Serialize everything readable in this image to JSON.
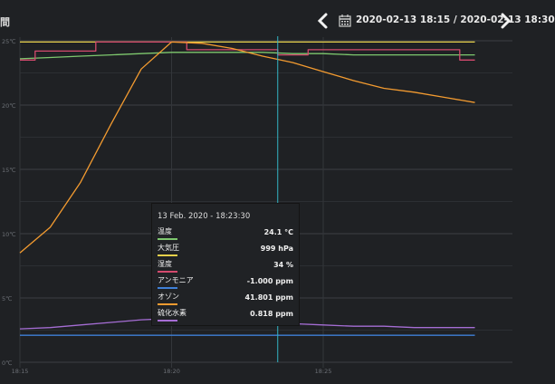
{
  "header": {
    "left_label": "間",
    "date_range": "2020-02-13 18:15 / 2020-02-13 18:30"
  },
  "colors": {
    "background": "#1f2124",
    "grid": "#3b3e42",
    "cursor": "#33b6c5"
  },
  "chart_data": {
    "type": "line",
    "x_ticks": [
      "18:15",
      "18:20",
      "18:25"
    ],
    "y_ticks": [
      "0℃",
      "5℃",
      "10℃",
      "15℃",
      "20℃",
      "25℃"
    ],
    "ylim": [
      0,
      25
    ],
    "grid": true,
    "cursor_time": "18:23:30",
    "series": [
      {
        "name": "温度",
        "color": "#7ec86e",
        "x": [
          "18:15",
          "18:16",
          "18:17",
          "18:18",
          "18:19",
          "18:20",
          "18:21",
          "18:22",
          "18:23",
          "18:24",
          "18:25",
          "18:26",
          "18:27",
          "18:28",
          "18:29",
          "18:30"
        ],
        "y": [
          23.6,
          23.7,
          23.8,
          23.9,
          24.0,
          24.1,
          24.1,
          24.1,
          24.1,
          24.0,
          24.0,
          23.9,
          23.9,
          23.9,
          23.9,
          23.9
        ]
      },
      {
        "name": "大気圧",
        "color": "#e6d04a",
        "x": [
          "18:15",
          "18:20",
          "18:25",
          "18:30"
        ],
        "y": [
          24.9,
          24.9,
          24.9,
          24.9
        ]
      },
      {
        "name": "湿度",
        "color": "#d44a6e",
        "x": [
          "18:15",
          "18:16",
          "18:17",
          "18:18",
          "18:19",
          "18:20",
          "18:21",
          "18:22",
          "18:23",
          "18:24",
          "18:25",
          "18:26",
          "18:27",
          "18:28",
          "18:29",
          "18:30"
        ],
        "y": [
          23.5,
          24.2,
          24.2,
          24.9,
          24.9,
          24.9,
          24.3,
          24.3,
          24.3,
          23.9,
          24.3,
          24.3,
          24.3,
          24.3,
          24.3,
          23.5
        ]
      },
      {
        "name": "アンモニア",
        "color": "#3f7fd6",
        "x": [
          "18:15",
          "18:20",
          "18:25",
          "18:30"
        ],
        "y": [
          2.1,
          2.1,
          2.1,
          2.1
        ]
      },
      {
        "name": "オゾン",
        "color": "#f39b30",
        "x": [
          "18:15",
          "18:16",
          "18:17",
          "18:18",
          "18:19",
          "18:20",
          "18:21",
          "18:22",
          "18:23",
          "18:24",
          "18:25",
          "18:26",
          "18:27",
          "18:28",
          "18:29",
          "18:30"
        ],
        "y": [
          8.5,
          10.5,
          14.0,
          18.5,
          22.8,
          24.9,
          24.8,
          24.4,
          23.8,
          23.3,
          22.6,
          21.9,
          21.3,
          21.0,
          20.6,
          20.2
        ]
      },
      {
        "name": "硫化水素",
        "color": "#a56dd4",
        "x": [
          "18:15",
          "18:16",
          "18:17",
          "18:18",
          "18:19",
          "18:20",
          "18:21",
          "18:22",
          "18:23",
          "18:24",
          "18:25",
          "18:26",
          "18:27",
          "18:28",
          "18:29",
          "18:30"
        ],
        "y": [
          2.6,
          2.7,
          2.9,
          3.1,
          3.3,
          3.4,
          3.3,
          3.2,
          3.1,
          3.0,
          2.9,
          2.8,
          2.8,
          2.7,
          2.7,
          2.7
        ]
      }
    ]
  },
  "tooltip": {
    "title": "13 Feb. 2020 - 18:23:30",
    "rows": [
      {
        "name": "温度",
        "value": "24.1 °C",
        "color": "#7ec86e"
      },
      {
        "name": "大気圧",
        "value": "999 hPa",
        "color": "#e6d04a"
      },
      {
        "name": "湿度",
        "value": "34 %",
        "color": "#d44a6e"
      },
      {
        "name": "アンモニア",
        "value": "-1.000 ppm",
        "color": "#3f7fd6"
      },
      {
        "name": "オゾン",
        "value": "41.801 ppm",
        "color": "#f39b30"
      },
      {
        "name": "硫化水素",
        "value": "0.818 ppm",
        "color": "#a56dd4"
      }
    ]
  }
}
